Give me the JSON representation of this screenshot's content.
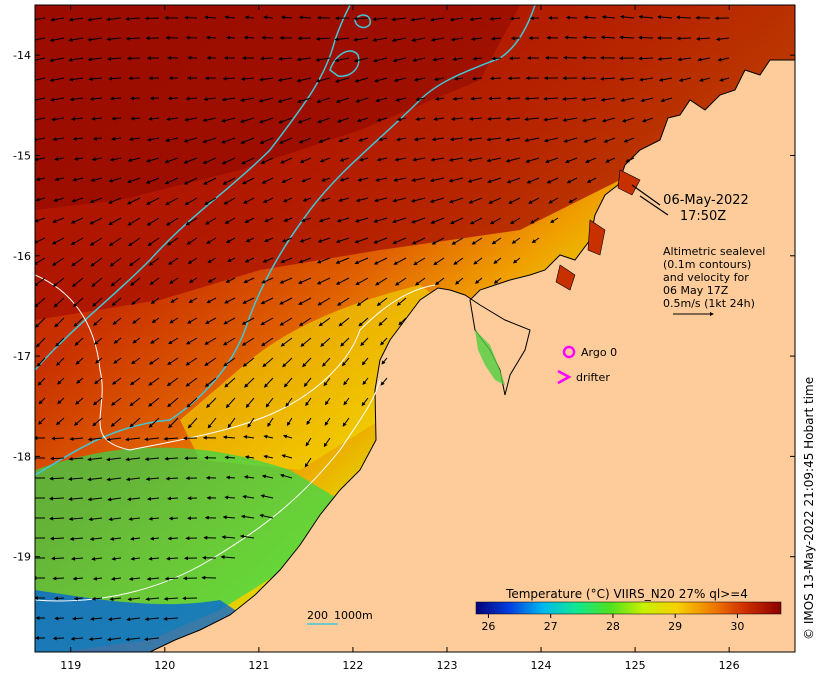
{
  "map": {
    "datetime_line1": "06-May-2022",
    "datetime_line2": "17:50Z",
    "note_lines": [
      "Altimetric sealevel",
      "(0.1m contours)",
      "and velocity for",
      "06 May 17Z",
      "0.5m/s (1kt 24h)"
    ],
    "legend": {
      "argo_label": "Argo 0",
      "drifter_label": "drifter",
      "argo_color": "#ff00ff",
      "drifter_color": "#ff00ff"
    },
    "scale_bar": {
      "labels": [
        "200",
        "1000m"
      ],
      "color": "#40c8d8"
    },
    "credit": "© IMOS 13-May-2022 21:09:45 Hobart time",
    "x_axis": {
      "ticks": [
        "119",
        "120",
        "121",
        "122",
        "123",
        "124",
        "125",
        "126"
      ],
      "range": [
        118.62,
        126.7
      ]
    },
    "y_axis": {
      "ticks": [
        "-14",
        "-15",
        "-16",
        "-17",
        "-18",
        "-19"
      ],
      "range": [
        -19.95,
        -13.5
      ]
    },
    "colorbar": {
      "title": "Temperature (°C) VIIRS_N20 27% ql>=4",
      "ticks": [
        "26",
        "27",
        "28",
        "29",
        "30"
      ],
      "range": [
        25.8,
        30.7
      ],
      "colors": [
        "#00007a",
        "#0040e0",
        "#00b8f0",
        "#10e890",
        "#50e020",
        "#c8f000",
        "#f8d000",
        "#f08000",
        "#d03000",
        "#8a0000"
      ]
    },
    "colors": {
      "land": "#fdcc9a",
      "coastline": "#000000",
      "contour_200m": "#40c8d8",
      "contour_1000m": "#ffffff",
      "current_arrows": "#000000"
    }
  }
}
